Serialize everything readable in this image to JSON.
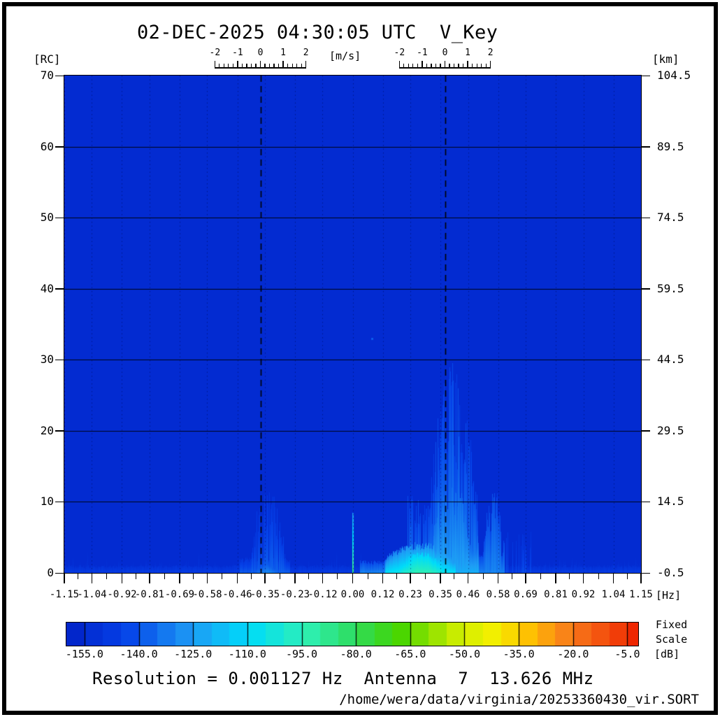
{
  "title": "02-DEC-2025 04:30:05 UTC  V_Key",
  "footer": {
    "resolution_line": "Resolution = 0.001127 Hz  Antenna  7  13.626 MHz",
    "file_path": "/home/wera/data/virginia/20253360430_vir.SORT"
  },
  "chart_data": {
    "type": "heatmap",
    "title": "02-DEC-2025 04:30:05 UTC  V_Key",
    "x_axis": {
      "unit": "[Hz]",
      "min": -1.15,
      "max": 1.15,
      "tick_labels": [
        "-1.15",
        "-1.04",
        "-0.92",
        "-0.81",
        "-0.69",
        "-0.58",
        "-0.46",
        "-0.35",
        "-0.23",
        "-0.12",
        "0.00",
        "0.12",
        "0.23",
        "0.35",
        "0.46",
        "0.58",
        "0.69",
        "0.81",
        "0.92",
        "1.04",
        "1.15"
      ],
      "tick_values": [
        -1.15,
        -1.04,
        -0.92,
        -0.81,
        -0.69,
        -0.58,
        -0.46,
        -0.35,
        -0.23,
        -0.12,
        0.0,
        0.12,
        0.23,
        0.35,
        0.46,
        0.58,
        0.69,
        0.81,
        0.92,
        1.04,
        1.15
      ]
    },
    "y_axis_left": {
      "unit": "[RC]",
      "min": 0,
      "max": 70,
      "ticks": [
        70,
        60,
        50,
        40,
        30,
        20,
        10,
        0
      ]
    },
    "y_axis_right": {
      "unit": "[km]",
      "tick_labels": [
        "104.5",
        "89.5",
        "74.5",
        "59.5",
        "44.5",
        "29.5",
        "14.5",
        "-0.5"
      ]
    },
    "velocity_scale": {
      "unit": "[m/s]",
      "major_tick_labels": [
        "-2",
        "-1",
        "0",
        "1",
        "2"
      ],
      "major_tick_values": [
        -2,
        -1,
        0,
        1,
        2
      ],
      "minor_step": 0.2,
      "centers_hz": [
        -0.368,
        0.368
      ],
      "hz_per_ms": 0.09084
    },
    "bragg_lines_hz": [
      -0.368,
      0.368
    ],
    "grid_rc": [
      10,
      20,
      30,
      40,
      50,
      60
    ],
    "background_db": -155,
    "features": [
      {
        "type": "noise",
        "x0": -1.15,
        "x1": 1.15,
        "hmin": 0.3,
        "hmax": 2.2,
        "v": -149,
        "vjit": 4,
        "tall_chance": 0.08,
        "tall_extra": 2.5
      },
      {
        "type": "band",
        "x0": -1.15,
        "x1": 1.15,
        "h": 0.9,
        "v": -147,
        "fade": 5
      },
      {
        "type": "band",
        "x0": -0.45,
        "x1": -0.25,
        "h": 1.8,
        "v": -139,
        "fade": 10
      },
      {
        "type": "blob",
        "x0": -0.385,
        "x1": -0.3,
        "h": 1.8,
        "v": -130,
        "fade": 14
      },
      {
        "type": "streaks",
        "x0": -0.405,
        "x1": -0.27,
        "hmin": 2,
        "hmax": 12.5,
        "density": 0.8,
        "v": -138,
        "vjit": 4,
        "fade": 10,
        "profile": "peak"
      },
      {
        "type": "band",
        "x0": 0.03,
        "x1": 0.15,
        "h": 1.5,
        "v": -131,
        "fade": 12
      },
      {
        "type": "blob",
        "x0": 0.13,
        "x1": 0.41,
        "h": 3.8,
        "v": -102,
        "fade": 26
      },
      {
        "type": "blob",
        "x0": 0.195,
        "x1": 0.355,
        "h": 2.6,
        "v": -94,
        "fade": 18
      },
      {
        "type": "band",
        "x0": 0.41,
        "x1": 0.5,
        "h": 4.5,
        "v": -121,
        "fade": 18
      },
      {
        "type": "band",
        "x0": 0.5,
        "x1": 0.6,
        "h": 2.4,
        "v": -132,
        "fade": 12
      },
      {
        "type": "streaks",
        "x0": 0.22,
        "x1": 0.32,
        "hmin": 3,
        "hmax": 11,
        "density": 0.85,
        "v": -134,
        "vjit": 5,
        "fade": 10,
        "profile": "flat"
      },
      {
        "type": "streaks",
        "x0": 0.3,
        "x1": 0.5,
        "hmin": 6,
        "hmax": 30,
        "density": 0.92,
        "v": -131,
        "vjit": 6,
        "fade": 13,
        "profile": "peak"
      },
      {
        "type": "streaks",
        "x0": 0.32,
        "x1": 0.46,
        "hmin": 4,
        "hmax": 15,
        "density": 0.95,
        "v": -123,
        "vjit": 4,
        "fade": 12,
        "profile": "peak"
      },
      {
        "type": "streaks",
        "x0": 0.52,
        "x1": 0.605,
        "hmin": 3,
        "hmax": 12,
        "density": 0.9,
        "v": -131,
        "vjit": 5,
        "fade": 11,
        "profile": "peak"
      },
      {
        "type": "streaks",
        "x0": 0.61,
        "x1": 0.73,
        "hmin": 2,
        "hmax": 6,
        "density": 0.3,
        "v": -141,
        "vjit": 4,
        "fade": 8,
        "profile": "flat"
      },
      {
        "type": "spike",
        "x": 0.0,
        "w": 2,
        "h": 9,
        "v": -86,
        "vtop": -126
      },
      {
        "type": "speck",
        "x": 0.078,
        "rc": 33,
        "v": -136
      }
    ],
    "colorbar": {
      "range_db": [
        -160,
        -2
      ],
      "step_db": 5,
      "tick_labels": [
        "-155.0",
        "-140.0",
        "-125.0",
        "-110.0",
        "-95.0",
        "-80.0",
        "-65.0",
        "-50.0",
        "-35.0",
        "-20.0",
        "-5.0"
      ],
      "tick_values": [
        -155,
        -140,
        -125,
        -110,
        -95,
        -80,
        -65,
        -50,
        -35,
        -20,
        -5
      ],
      "unit": "[dB]",
      "mode_label_lines": [
        "Fixed",
        "Scale"
      ],
      "stops": [
        [
          0.0,
          "#0222c6"
        ],
        [
          0.1,
          "#0540e8"
        ],
        [
          0.22,
          "#1e9df5"
        ],
        [
          0.32,
          "#00dcfa"
        ],
        [
          0.42,
          "#2ff0b4"
        ],
        [
          0.5,
          "#2edd62"
        ],
        [
          0.58,
          "#44d500"
        ],
        [
          0.68,
          "#c8ec00"
        ],
        [
          0.74,
          "#f2f200"
        ],
        [
          0.8,
          "#ffc800"
        ],
        [
          0.88,
          "#f97b1c"
        ],
        [
          1.0,
          "#ee2400"
        ]
      ]
    }
  }
}
